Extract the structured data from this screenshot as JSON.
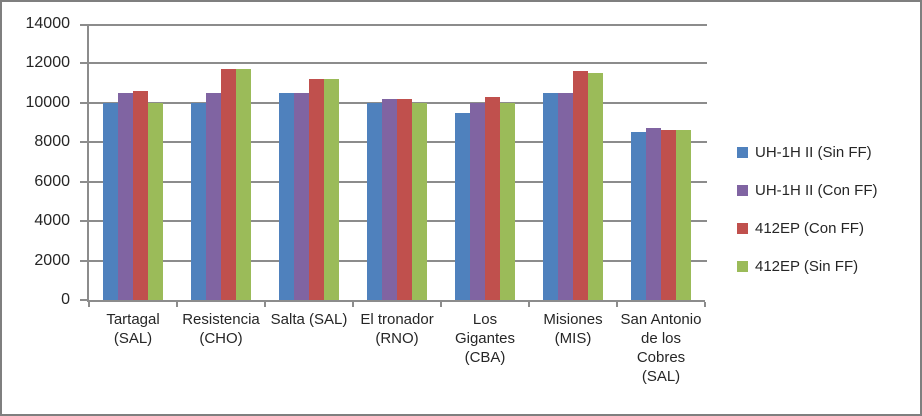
{
  "chart_data": {
    "type": "bar",
    "title": "",
    "xlabel": "",
    "ylabel": "",
    "categories": [
      "Tartagal (SAL)",
      "Resistencia (CHO)",
      "Salta (SAL)",
      "El tronador (RNO)",
      "Los Gigantes (CBA)",
      "Misiones (MIS)",
      "San Antonio de los Cobres (SAL)"
    ],
    "series": [
      {
        "name": "UH-1H II (Sin FF)",
        "color": "#4F81BD",
        "values": [
          10000,
          10000,
          10500,
          10000,
          9500,
          10500,
          8500
        ]
      },
      {
        "name": "UH-1H II (Con FF)",
        "color": "#8064A2",
        "values": [
          10500,
          10500,
          10500,
          10200,
          10000,
          10500,
          8700
        ]
      },
      {
        "name": "412EP (Con FF)",
        "color": "#C0504D",
        "values": [
          10600,
          11700,
          11200,
          10200,
          10300,
          11600,
          8600
        ]
      },
      {
        "name": "412EP (Sin FF)",
        "color": "#9BBB59",
        "values": [
          10000,
          11700,
          11200,
          10000,
          10000,
          11500,
          8600
        ]
      }
    ],
    "ylim": [
      0,
      14000
    ],
    "yticks": [
      0,
      2000,
      4000,
      6000,
      8000,
      10000,
      12000,
      14000
    ],
    "grid": true,
    "legend_position": "right"
  },
  "colors": {
    "background": "#FFFFFF",
    "frame_border": "#7F7F7F",
    "axis_line": "#8C8C8C",
    "gridline": "#8C8C8C",
    "text": "#262626"
  }
}
